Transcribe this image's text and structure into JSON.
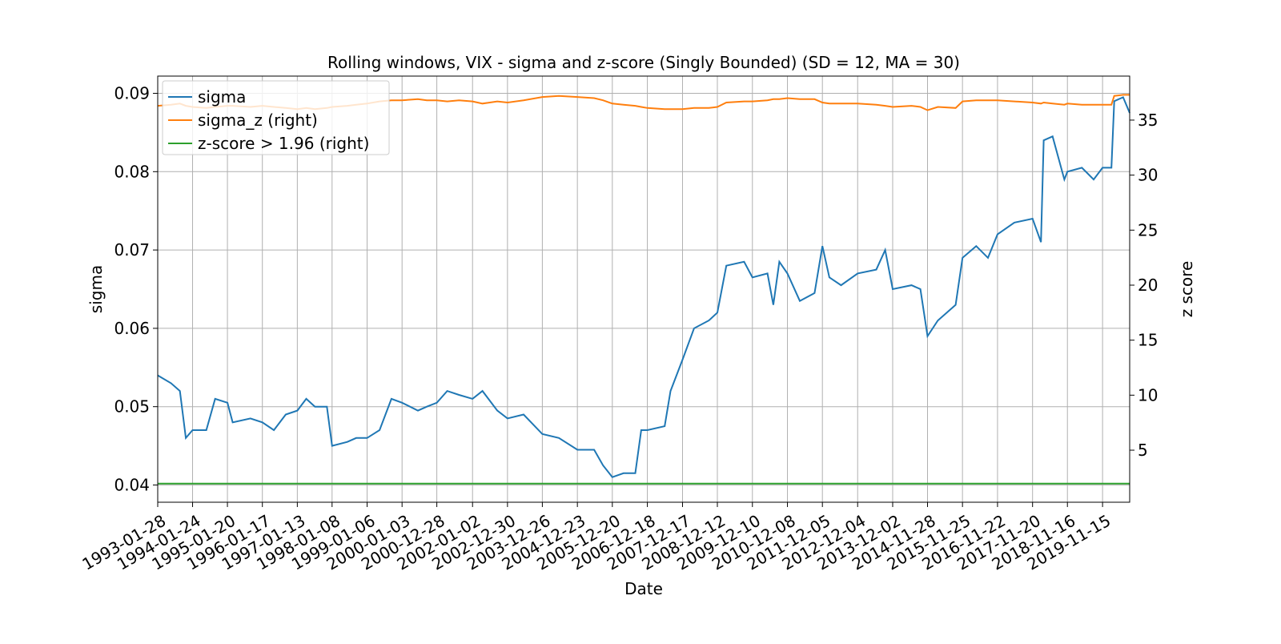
{
  "chart_data": {
    "type": "line",
    "title": "Rolling windows, VIX - sigma and z-score (Singly Bounded) (SD = 12, MA = 30)",
    "xlabel": "Date",
    "ylabel": "sigma",
    "y2label": "z score",
    "x": [
      "1993-01-28",
      "1993-06-15",
      "1993-09-15",
      "1993-11-15",
      "1994-01-24",
      "1994-06-15",
      "1994-09-15",
      "1995-01-20",
      "1995-03-15",
      "1995-09-15",
      "1996-01-17",
      "1996-05-15",
      "1996-09-15",
      "1997-01-13",
      "1997-04-15",
      "1997-07-15",
      "1997-11-15",
      "1998-01-08",
      "1998-06-15",
      "1998-09-15",
      "1999-01-06",
      "1999-05-15",
      "1999-09-15",
      "2000-01-03",
      "2000-06-15",
      "2000-09-15",
      "2000-12-28",
      "2001-04-15",
      "2001-08-15",
      "2002-01-02",
      "2002-04-15",
      "2002-09-15",
      "2002-12-30",
      "2003-06-15",
      "2003-12-26",
      "2004-06-15",
      "2004-12-23",
      "2005-06-15",
      "2005-09-15",
      "2005-12-20",
      "2006-04-15",
      "2006-08-15",
      "2006-10-15",
      "2006-12-18",
      "2007-06-15",
      "2007-08-15",
      "2007-12-17",
      "2008-04-15",
      "2008-09-15",
      "2008-12-12",
      "2009-03-15",
      "2009-09-15",
      "2009-12-10",
      "2010-05-15",
      "2010-07-15",
      "2010-09-15",
      "2010-12-08",
      "2011-04-15",
      "2011-09-15",
      "2011-12-05",
      "2012-02-15",
      "2012-06-15",
      "2012-12-04",
      "2013-06-15",
      "2013-09-15",
      "2013-12-02",
      "2014-06-15",
      "2014-09-15",
      "2014-11-28",
      "2015-03-15",
      "2015-09-15",
      "2015-11-25",
      "2016-04-15",
      "2016-08-15",
      "2016-11-22",
      "2017-05-15",
      "2017-11-20",
      "2018-02-15",
      "2018-03-15",
      "2018-06-15",
      "2018-10-15",
      "2018-11-16",
      "2019-04-15",
      "2019-08-15",
      "2019-11-15",
      "2020-02-15",
      "2020-03-15",
      "2020-06-15",
      "2020-08-22"
    ],
    "series": [
      {
        "name": "sigma",
        "color": "#1f77b4",
        "axis": "y",
        "values": [
          0.054,
          0.053,
          0.052,
          0.046,
          0.047,
          0.047,
          0.051,
          0.0505,
          0.048,
          0.0485,
          0.048,
          0.047,
          0.049,
          0.0495,
          0.051,
          0.05,
          0.05,
          0.045,
          0.0455,
          0.046,
          0.046,
          0.047,
          0.051,
          0.0505,
          0.0495,
          0.05,
          0.0505,
          0.052,
          0.0515,
          0.051,
          0.052,
          0.0495,
          0.0485,
          0.049,
          0.0465,
          0.046,
          0.0445,
          0.0445,
          0.0425,
          0.041,
          0.0415,
          0.0415,
          0.047,
          0.047,
          0.0475,
          0.052,
          0.056,
          0.06,
          0.061,
          0.062,
          0.068,
          0.0685,
          0.0665,
          0.067,
          0.063,
          0.0685,
          0.067,
          0.0635,
          0.0645,
          0.0705,
          0.0665,
          0.0655,
          0.067,
          0.0675,
          0.07,
          0.065,
          0.0655,
          0.065,
          0.059,
          0.061,
          0.063,
          0.069,
          0.0705,
          0.069,
          0.072,
          0.0735,
          0.074,
          0.071,
          0.084,
          0.0845,
          0.079,
          0.08,
          0.0805,
          0.079,
          0.0805,
          0.0805,
          0.089,
          0.0895,
          0.0875
        ]
      },
      {
        "name": "sigma_z (right)",
        "color": "#ff7f0e",
        "axis": "y2",
        "values": [
          36.3,
          36.4,
          36.5,
          36.3,
          36.2,
          36.1,
          36.2,
          36.3,
          36.3,
          36.2,
          36.3,
          36.2,
          36.1,
          36.0,
          36.1,
          36.0,
          36.1,
          36.2,
          36.3,
          36.4,
          36.5,
          36.7,
          36.8,
          36.8,
          36.9,
          36.8,
          36.8,
          36.7,
          36.8,
          36.7,
          36.5,
          36.7,
          36.6,
          36.8,
          37.1,
          37.2,
          37.1,
          37.0,
          36.8,
          36.5,
          36.4,
          36.3,
          36.2,
          36.1,
          36.0,
          36.0,
          36.0,
          36.1,
          36.1,
          36.2,
          36.6,
          36.7,
          36.7,
          36.8,
          36.9,
          36.9,
          37.0,
          36.9,
          36.9,
          36.6,
          36.5,
          36.5,
          36.5,
          36.4,
          36.3,
          36.2,
          36.3,
          36.2,
          35.9,
          36.2,
          36.1,
          36.7,
          36.8,
          36.8,
          36.8,
          36.7,
          36.6,
          36.5,
          36.6,
          36.5,
          36.4,
          36.5,
          36.4,
          36.4,
          36.4,
          36.4,
          37.2,
          37.3,
          37.3
        ]
      },
      {
        "name": "z-score > 1.96 (right)",
        "color": "#2ca02c",
        "axis": "y2",
        "x": [
          "1993-01-28",
          "2020-08-22"
        ],
        "values": [
          1.96,
          1.96
        ]
      }
    ],
    "xlim": [
      "1993-01-28",
      "2020-08-22"
    ],
    "xticks": [
      "1993-01-28",
      "1994-01-24",
      "1995-01-20",
      "1996-01-17",
      "1997-01-13",
      "1998-01-08",
      "1999-01-06",
      "2000-01-03",
      "2000-12-28",
      "2002-01-02",
      "2002-12-30",
      "2003-12-26",
      "2004-12-23",
      "2005-12-20",
      "2006-12-18",
      "2007-12-17",
      "2008-12-12",
      "2009-12-10",
      "2010-12-08",
      "2011-12-05",
      "2012-12-04",
      "2013-12-02",
      "2014-11-28",
      "2015-11-25",
      "2016-11-22",
      "2017-11-20",
      "2018-11-16",
      "2019-11-15"
    ],
    "ylim": [
      0.0378,
      0.0922
    ],
    "yticks": [
      0.04,
      0.05,
      0.06,
      0.07,
      0.08,
      0.09
    ],
    "y2lim": [
      0.27,
      39.0
    ],
    "y2ticks": [
      5,
      10,
      15,
      20,
      25,
      30,
      35
    ],
    "grid": true,
    "legend": "upper left"
  }
}
